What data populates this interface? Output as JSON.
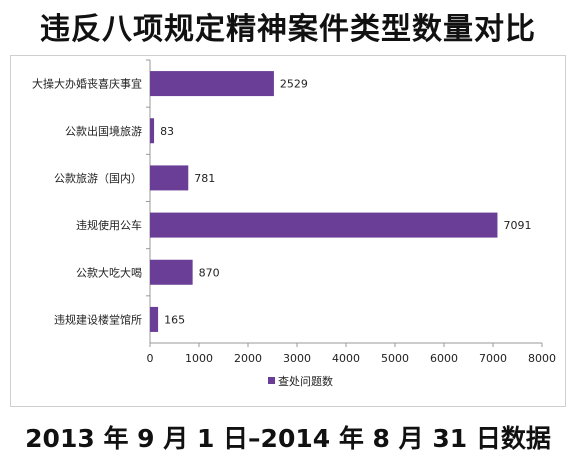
{
  "title": "违反八项规定精神案件类型数量对比",
  "caption": "2013 年 9 月 1 日–2014 年 8 月 31 日数据",
  "colors": {
    "bar": "#6a3d96",
    "axis": "#999999",
    "text": "#222222"
  },
  "chart_data": {
    "type": "bar",
    "orientation": "horizontal",
    "categories": [
      "大操大办婚丧喜庆事宜",
      "公款出国境旅游",
      "公款旅游（国内）",
      "违规使用公车",
      "公款大吃大喝",
      "违规建设楼堂馆所"
    ],
    "series": [
      {
        "name": "查处问题数",
        "values": [
          2529,
          83,
          781,
          7091,
          870,
          165
        ]
      }
    ],
    "xlim": [
      0,
      8000
    ],
    "xticks": [
      0,
      1000,
      2000,
      3000,
      4000,
      5000,
      6000,
      7000,
      8000
    ],
    "grid": false,
    "legend": "bottom"
  }
}
